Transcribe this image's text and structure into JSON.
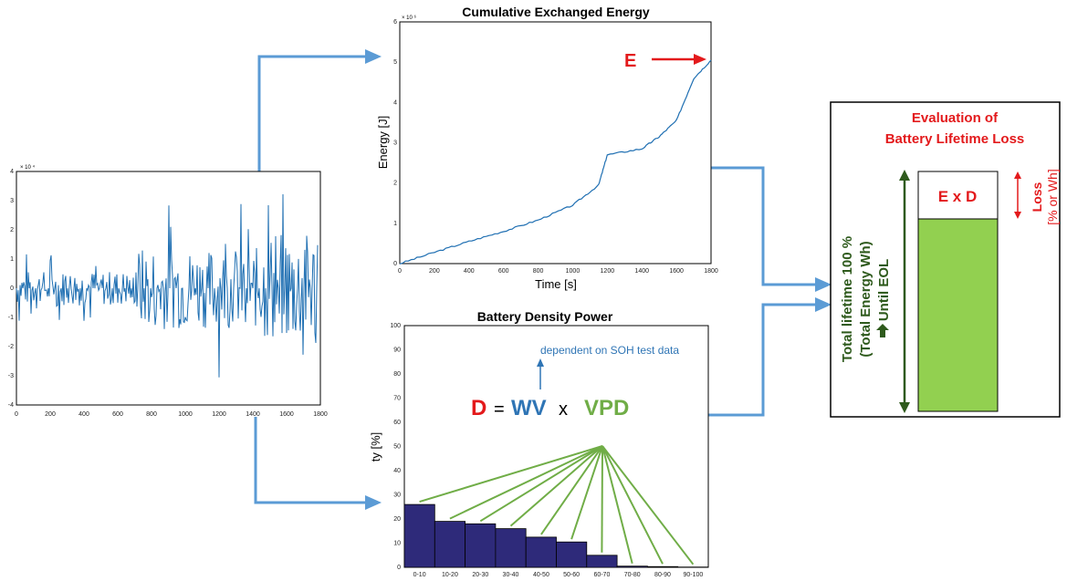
{
  "signal_plot": {
    "exponent": "× 10 ⁴",
    "yticks": [
      "4",
      "3",
      "2",
      "1",
      "0",
      "-1",
      "-2",
      "-3",
      "-4"
    ],
    "xticks": [
      "0",
      "200",
      "400",
      "600",
      "800",
      "1000",
      "1200",
      "1400",
      "1600",
      "1800"
    ]
  },
  "energy_plot": {
    "title": "Cumulative Exchanged Energy",
    "xlabel": "Time [s]",
    "ylabel": "Energy [J]",
    "exponent": "× 10 ⁶",
    "yticks": [
      "6",
      "5",
      "4",
      "3",
      "2",
      "1",
      "0"
    ],
    "xticks": [
      "0",
      "200",
      "400",
      "600",
      "800",
      "1000",
      "1200",
      "1400",
      "1600",
      "1800"
    ],
    "e_label": "E"
  },
  "density_plot": {
    "title": "Battery Density Power",
    "ylabel": "ty [%]",
    "yticks": [
      "100",
      "90",
      "80",
      "70",
      "60",
      "50",
      "40",
      "30",
      "20",
      "10",
      "0"
    ],
    "annotation": "dependent on SOH test data",
    "formula": {
      "d": "D",
      "eq": "=",
      "wv": "WV",
      "x": "x",
      "vpd": "VPD"
    }
  },
  "evaluation": {
    "title_line1": "Evaluation of",
    "title_line2": "Battery Lifetime Loss",
    "exd": "E x D",
    "loss": "Loss",
    "loss_unit": "[% or Wh]",
    "total1": "Total lifetime 100 %",
    "total2": "(Total Energy Wh)",
    "total3": "Until EOL"
  },
  "chart_data": {
    "type": "bar",
    "categories": [
      "0-10",
      "10-20",
      "20-30",
      "30-40",
      "40-50",
      "50-60",
      "60-70",
      "70-80",
      "80-90",
      "90-100"
    ],
    "values": [
      26,
      19,
      18,
      16,
      12.5,
      10.5,
      5,
      0.5,
      0.3,
      0.1
    ],
    "title": "Battery Density Power",
    "ylabel": "ty [%]",
    "ylim": [
      0,
      100
    ]
  },
  "colors": {
    "arrow_blue": "#5b9bd5",
    "bar_navy": "#2e2a7a",
    "green": "#70ad47",
    "red": "#e31a1c",
    "dark_green": "#2e5a1c",
    "line_blue": "#1f6fb2",
    "fill_green": "#92d050",
    "wv_blue": "#2f75b5"
  }
}
